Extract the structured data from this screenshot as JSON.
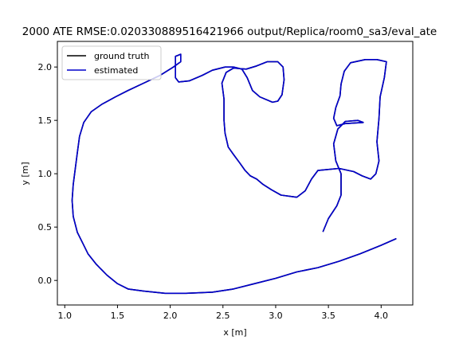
{
  "chart_data": {
    "type": "line",
    "title": "2000 ATE RMSE:0.020330889516421966 output/Replica/room0_sa3/eval_ate",
    "xlabel": "x [m]",
    "ylabel": "y [m]",
    "xlim": [
      0.93,
      4.3
    ],
    "ylim": [
      -0.23,
      2.24
    ],
    "xticks": [
      1.0,
      1.5,
      2.0,
      2.5,
      3.0,
      3.5,
      4.0
    ],
    "yticks": [
      0.0,
      0.5,
      1.0,
      1.5,
      2.0
    ],
    "xtick_labels": [
      "1.0",
      "1.5",
      "2.0",
      "2.5",
      "3.0",
      "3.5",
      "4.0"
    ],
    "ytick_labels": [
      "0.0",
      "0.5",
      "1.0",
      "1.5",
      "2.0"
    ],
    "grid": false,
    "legend_position": "top-left",
    "series": [
      {
        "name": "ground truth",
        "color": "#000000",
        "points": [
          [
            3.45,
            0.46
          ],
          [
            3.5,
            0.58
          ],
          [
            3.58,
            0.7
          ],
          [
            3.62,
            0.8
          ],
          [
            3.62,
            1.0
          ],
          [
            3.57,
            1.12
          ],
          [
            3.55,
            1.28
          ],
          [
            3.59,
            1.42
          ],
          [
            3.66,
            1.49
          ],
          [
            3.78,
            1.5
          ],
          [
            3.83,
            1.48
          ],
          [
            3.66,
            1.47
          ],
          [
            3.58,
            1.45
          ],
          [
            3.55,
            1.52
          ],
          [
            3.57,
            1.62
          ],
          [
            3.61,
            1.73
          ],
          [
            3.62,
            1.84
          ],
          [
            3.65,
            1.96
          ],
          [
            3.71,
            2.04
          ],
          [
            3.85,
            2.07
          ],
          [
            3.96,
            2.07
          ],
          [
            4.05,
            2.05
          ],
          [
            4.03,
            1.9
          ],
          [
            3.99,
            1.72
          ],
          [
            3.98,
            1.52
          ],
          [
            3.96,
            1.3
          ],
          [
            3.98,
            1.12
          ],
          [
            3.95,
            1.0
          ],
          [
            3.9,
            0.95
          ],
          [
            3.82,
            0.98
          ],
          [
            3.74,
            1.02
          ],
          [
            3.6,
            1.05
          ],
          [
            3.4,
            1.03
          ],
          [
            3.34,
            0.95
          ],
          [
            3.28,
            0.84
          ],
          [
            3.2,
            0.78
          ],
          [
            3.05,
            0.8
          ],
          [
            2.96,
            0.85
          ],
          [
            2.88,
            0.9
          ],
          [
            2.82,
            0.95
          ],
          [
            2.76,
            0.98
          ],
          [
            2.71,
            1.03
          ],
          [
            2.66,
            1.1
          ],
          [
            2.6,
            1.18
          ],
          [
            2.55,
            1.25
          ],
          [
            2.52,
            1.38
          ],
          [
            2.51,
            1.5
          ],
          [
            2.51,
            1.7
          ],
          [
            2.49,
            1.85
          ],
          [
            2.53,
            1.95
          ],
          [
            2.6,
            1.99
          ],
          [
            2.72,
            1.98
          ],
          [
            2.82,
            2.01
          ],
          [
            2.92,
            2.05
          ],
          [
            3.02,
            2.05
          ],
          [
            3.07,
            2.0
          ],
          [
            3.08,
            1.88
          ],
          [
            3.06,
            1.74
          ],
          [
            3.02,
            1.68
          ],
          [
            2.97,
            1.67
          ],
          [
            2.85,
            1.72
          ],
          [
            2.78,
            1.78
          ],
          [
            2.73,
            1.9
          ],
          [
            2.68,
            1.98
          ],
          [
            2.6,
            2.0
          ],
          [
            2.52,
            2.0
          ],
          [
            2.4,
            1.97
          ],
          [
            2.3,
            1.92
          ],
          [
            2.18,
            1.87
          ],
          [
            2.08,
            1.86
          ],
          [
            2.05,
            1.9
          ],
          [
            2.05,
            2.1
          ],
          [
            2.1,
            2.12
          ],
          [
            2.1,
            2.05
          ],
          [
            2.03,
            2.0
          ],
          [
            1.9,
            1.92
          ],
          [
            1.75,
            1.85
          ],
          [
            1.6,
            1.78
          ],
          [
            1.48,
            1.72
          ],
          [
            1.35,
            1.65
          ],
          [
            1.25,
            1.58
          ],
          [
            1.18,
            1.48
          ],
          [
            1.14,
            1.35
          ],
          [
            1.12,
            1.2
          ],
          [
            1.1,
            1.05
          ],
          [
            1.08,
            0.9
          ],
          [
            1.07,
            0.75
          ],
          [
            1.08,
            0.6
          ],
          [
            1.12,
            0.45
          ],
          [
            1.17,
            0.35
          ],
          [
            1.22,
            0.25
          ],
          [
            1.3,
            0.15
          ],
          [
            1.4,
            0.05
          ],
          [
            1.5,
            -0.03
          ],
          [
            1.6,
            -0.08
          ],
          [
            1.75,
            -0.1
          ],
          [
            1.95,
            -0.12
          ],
          [
            2.15,
            -0.12
          ],
          [
            2.4,
            -0.11
          ],
          [
            2.6,
            -0.08
          ],
          [
            2.8,
            -0.03
          ],
          [
            3.0,
            0.02
          ],
          [
            3.2,
            0.08
          ],
          [
            3.4,
            0.12
          ],
          [
            3.6,
            0.18
          ],
          [
            3.8,
            0.25
          ],
          [
            4.0,
            0.33
          ],
          [
            4.14,
            0.39
          ]
        ]
      },
      {
        "name": "estimated",
        "color": "#0000cc",
        "points": [
          [
            3.45,
            0.46
          ],
          [
            3.5,
            0.58
          ],
          [
            3.58,
            0.7
          ],
          [
            3.62,
            0.8
          ],
          [
            3.62,
            1.0
          ],
          [
            3.57,
            1.12
          ],
          [
            3.55,
            1.28
          ],
          [
            3.59,
            1.42
          ],
          [
            3.66,
            1.49
          ],
          [
            3.78,
            1.5
          ],
          [
            3.83,
            1.48
          ],
          [
            3.66,
            1.47
          ],
          [
            3.58,
            1.45
          ],
          [
            3.55,
            1.52
          ],
          [
            3.57,
            1.62
          ],
          [
            3.61,
            1.73
          ],
          [
            3.62,
            1.84
          ],
          [
            3.65,
            1.96
          ],
          [
            3.71,
            2.04
          ],
          [
            3.85,
            2.07
          ],
          [
            3.96,
            2.07
          ],
          [
            4.05,
            2.05
          ],
          [
            4.03,
            1.9
          ],
          [
            3.99,
            1.72
          ],
          [
            3.98,
            1.52
          ],
          [
            3.96,
            1.3
          ],
          [
            3.98,
            1.12
          ],
          [
            3.95,
            1.0
          ],
          [
            3.9,
            0.95
          ],
          [
            3.82,
            0.98
          ],
          [
            3.74,
            1.02
          ],
          [
            3.6,
            1.05
          ],
          [
            3.4,
            1.03
          ],
          [
            3.34,
            0.95
          ],
          [
            3.28,
            0.84
          ],
          [
            3.2,
            0.78
          ],
          [
            3.05,
            0.8
          ],
          [
            2.96,
            0.85
          ],
          [
            2.88,
            0.9
          ],
          [
            2.82,
            0.95
          ],
          [
            2.76,
            0.98
          ],
          [
            2.71,
            1.03
          ],
          [
            2.66,
            1.1
          ],
          [
            2.6,
            1.18
          ],
          [
            2.55,
            1.25
          ],
          [
            2.52,
            1.38
          ],
          [
            2.51,
            1.5
          ],
          [
            2.51,
            1.7
          ],
          [
            2.49,
            1.85
          ],
          [
            2.53,
            1.95
          ],
          [
            2.6,
            1.99
          ],
          [
            2.72,
            1.98
          ],
          [
            2.82,
            2.01
          ],
          [
            2.92,
            2.05
          ],
          [
            3.02,
            2.05
          ],
          [
            3.07,
            2.0
          ],
          [
            3.08,
            1.88
          ],
          [
            3.06,
            1.74
          ],
          [
            3.02,
            1.68
          ],
          [
            2.97,
            1.67
          ],
          [
            2.85,
            1.72
          ],
          [
            2.78,
            1.78
          ],
          [
            2.73,
            1.9
          ],
          [
            2.68,
            1.98
          ],
          [
            2.6,
            2.0
          ],
          [
            2.52,
            2.0
          ],
          [
            2.4,
            1.97
          ],
          [
            2.3,
            1.92
          ],
          [
            2.18,
            1.87
          ],
          [
            2.08,
            1.86
          ],
          [
            2.05,
            1.9
          ],
          [
            2.05,
            2.1
          ],
          [
            2.1,
            2.12
          ],
          [
            2.1,
            2.05
          ],
          [
            2.03,
            2.0
          ],
          [
            1.9,
            1.92
          ],
          [
            1.75,
            1.85
          ],
          [
            1.6,
            1.78
          ],
          [
            1.48,
            1.72
          ],
          [
            1.35,
            1.65
          ],
          [
            1.25,
            1.58
          ],
          [
            1.18,
            1.48
          ],
          [
            1.14,
            1.35
          ],
          [
            1.12,
            1.2
          ],
          [
            1.1,
            1.05
          ],
          [
            1.08,
            0.9
          ],
          [
            1.07,
            0.75
          ],
          [
            1.08,
            0.6
          ],
          [
            1.12,
            0.45
          ],
          [
            1.17,
            0.35
          ],
          [
            1.22,
            0.25
          ],
          [
            1.3,
            0.15
          ],
          [
            1.4,
            0.05
          ],
          [
            1.5,
            -0.03
          ],
          [
            1.6,
            -0.08
          ],
          [
            1.75,
            -0.1
          ],
          [
            1.95,
            -0.12
          ],
          [
            2.15,
            -0.12
          ],
          [
            2.4,
            -0.11
          ],
          [
            2.6,
            -0.08
          ],
          [
            2.8,
            -0.03
          ],
          [
            3.0,
            0.02
          ],
          [
            3.2,
            0.08
          ],
          [
            3.4,
            0.12
          ],
          [
            3.6,
            0.18
          ],
          [
            3.8,
            0.25
          ],
          [
            4.0,
            0.33
          ],
          [
            4.14,
            0.39
          ]
        ]
      }
    ]
  }
}
